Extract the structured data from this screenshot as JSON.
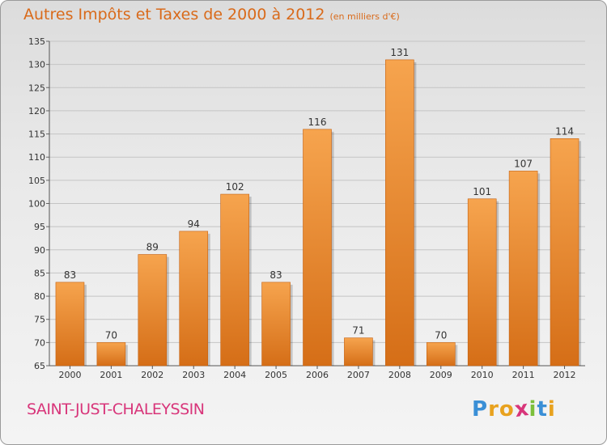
{
  "header": {
    "title": "Autres Impôts et Taxes de 2000 à 2012",
    "unit": "(en milliers d'€)"
  },
  "footer": {
    "commune": "SAINT-JUST-CHALEYSSIN",
    "brand_letters": [
      "P",
      "r",
      "o",
      "x",
      "i",
      "t",
      "i"
    ]
  },
  "colors": {
    "bar_light": "#f6a44e",
    "bar_dark": "#d56e17",
    "title": "#d96a1a",
    "commune": "#d8357a",
    "brand": [
      "#3a8fd6",
      "#e8a21f",
      "#e8a21f",
      "#d8357a",
      "#7cbf3b",
      "#3a8fd6",
      "#e8a21f"
    ]
  },
  "chart_data": {
    "type": "bar",
    "title": "Autres Impôts et Taxes de 2000 à 2012",
    "subtitle": "(en milliers d'€)",
    "categories": [
      "2000",
      "2001",
      "2002",
      "2003",
      "2004",
      "2005",
      "2006",
      "2007",
      "2008",
      "2009",
      "2010",
      "2011",
      "2012"
    ],
    "values": [
      83,
      70,
      89,
      94,
      102,
      83,
      116,
      71,
      131,
      70,
      101,
      107,
      114
    ],
    "ylim": [
      65,
      135
    ],
    "yticks": [
      65,
      70,
      75,
      80,
      85,
      90,
      95,
      100,
      105,
      110,
      115,
      120,
      125,
      130,
      135
    ],
    "grid": true,
    "data_labels": true
  }
}
